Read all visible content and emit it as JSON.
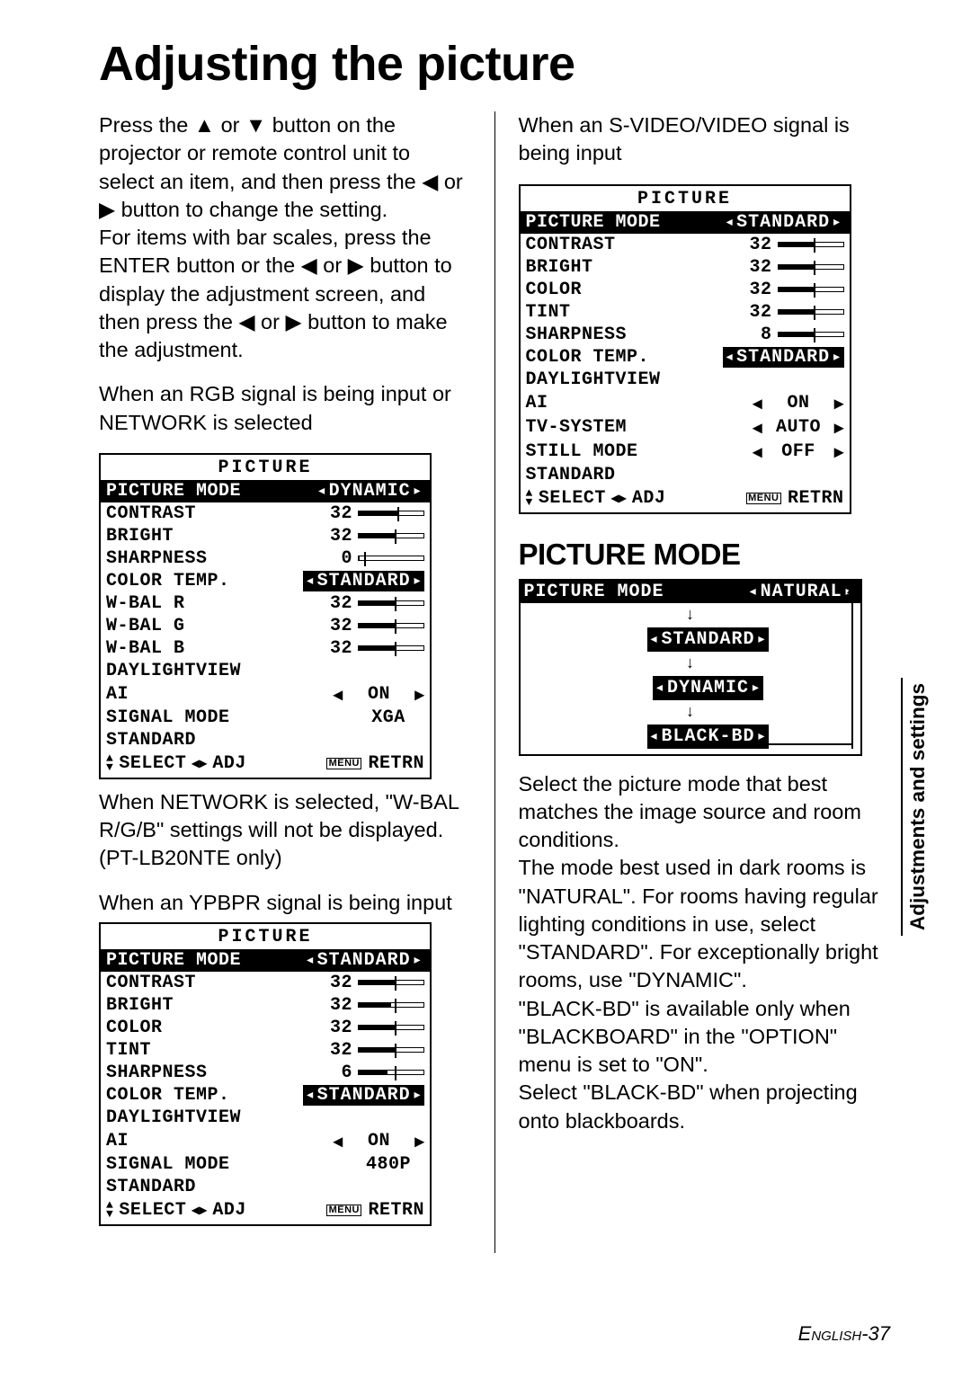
{
  "title": "Adjusting the picture",
  "left": {
    "intro": "Press the ▲ or ▼ button on the projector or remote control unit to select an item, and then press the ◀ or ▶ button to change the setting.\nFor items with bar scales, press the ENTER button or the ◀ or ▶ button to display the adjustment screen, and then press the ◀ or ▶ button to make the adjustment.",
    "cap1": "When an RGB signal is being input or NETWORK is selected",
    "osd1": {
      "title": "PICTURE",
      "mode_label": "PICTURE MODE",
      "mode_value": "DYNAMIC",
      "rows": [
        {
          "label": "CONTRAST",
          "val": "32",
          "bar_fill": 0.6,
          "tick": 0.6
        },
        {
          "label": "BRIGHT",
          "val": "32",
          "bar_fill": 0.55,
          "tick": 0.55
        },
        {
          "label": "SHARPNESS",
          "val": "0",
          "bar_fill": 0.02,
          "tick": 0.08
        },
        {
          "label": "COLOR TEMP.",
          "pill": "STANDARD"
        },
        {
          "label": "W-BAL R",
          "val": "32",
          "bar_fill": 0.55,
          "tick": 0.55
        },
        {
          "label": "W-BAL G",
          "val": "32",
          "bar_fill": 0.55,
          "tick": 0.55
        },
        {
          "label": "W-BAL B",
          "val": "32",
          "bar_fill": 0.55,
          "tick": 0.55
        },
        {
          "label": "DAYLIGHTVIEW"
        },
        {
          "label": "AI",
          "arrow_val": "ON"
        },
        {
          "label": "SIGNAL MODE",
          "text_val": "XGA"
        },
        {
          "label": "STANDARD"
        }
      ],
      "footer_select": "SELECT",
      "footer_adj": "ADJ",
      "footer_retrn": "RETRN"
    },
    "note1": "When NETWORK is selected, \"W-BAL R/G/B\" settings will not be displayed. (PT-LB20NTE only)",
    "cap2": "When an YPBPR signal is being input",
    "osd2": {
      "title": "PICTURE",
      "mode_label": "PICTURE MODE",
      "mode_value": "STANDARD",
      "rows": [
        {
          "label": "CONTRAST",
          "val": "32",
          "bar_fill": 0.55,
          "tick": 0.55
        },
        {
          "label": "BRIGHT",
          "val": "32",
          "bar_fill": 0.5,
          "tick": 0.55
        },
        {
          "label": "COLOR",
          "val": "32",
          "bar_fill": 0.55,
          "tick": 0.55
        },
        {
          "label": "TINT",
          "val": "32",
          "bar_fill": 0.55,
          "tick": 0.55
        },
        {
          "label": "SHARPNESS",
          "val": "6",
          "bar_fill": 0.45,
          "tick": 0.55
        },
        {
          "label": "COLOR TEMP.",
          "pill": "STANDARD"
        },
        {
          "label": "DAYLIGHTVIEW"
        },
        {
          "label": "AI",
          "arrow_val": "ON"
        },
        {
          "label": "SIGNAL MODE",
          "text_val": "480P"
        },
        {
          "label": "STANDARD"
        }
      ],
      "footer_select": "SELECT",
      "footer_adj": "ADJ",
      "footer_retrn": "RETRN"
    }
  },
  "right": {
    "cap3": "When an S-VIDEO/VIDEO signal is being input",
    "osd3": {
      "title": "PICTURE",
      "mode_label": "PICTURE MODE",
      "mode_value": "STANDARD",
      "rows": [
        {
          "label": "CONTRAST",
          "val": "32",
          "bar_fill": 0.55,
          "tick": 0.55
        },
        {
          "label": "BRIGHT",
          "val": "32",
          "bar_fill": 0.55,
          "tick": 0.55
        },
        {
          "label": "COLOR",
          "val": "32",
          "bar_fill": 0.55,
          "tick": 0.55
        },
        {
          "label": "TINT",
          "val": "32",
          "bar_fill": 0.55,
          "tick": 0.55
        },
        {
          "label": "SHARPNESS",
          "val": "8",
          "bar_fill": 0.55,
          "tick": 0.55
        },
        {
          "label": "COLOR TEMP.",
          "pill": "STANDARD"
        },
        {
          "label": "DAYLIGHTVIEW"
        },
        {
          "label": "AI",
          "arrow_val": "ON"
        },
        {
          "label": "TV-SYSTEM",
          "arrow_val": "AUTO"
        },
        {
          "label": "STILL MODE",
          "arrow_val": "OFF"
        },
        {
          "label": "STANDARD"
        }
      ],
      "footer_select": "SELECT",
      "footer_adj": "ADJ",
      "footer_retrn": "RETRN"
    },
    "pm_heading": "PICTURE MODE",
    "pm_top_label": "PICTURE MODE",
    "pm_top_value": "NATURAL",
    "pm_nodes": [
      "STANDARD",
      "DYNAMIC",
      "BLACK-BD"
    ],
    "pm_text": "Select the picture mode that best matches the image source and room conditions.\nThe mode best used in dark rooms is \"NATURAL\". For rooms having regular lighting conditions in use, select \"STANDARD\". For exceptionally bright rooms, use \"DYNAMIC\".\n\"BLACK-BD\" is available only when \"BLACKBOARD\" in the \"OPTION\" menu is set to \"ON\".\nSelect \"BLACK-BD\" when projecting onto blackboards."
  },
  "side_tab": "Adjustments and settings",
  "page_label_en": "English",
  "page_number": "-37"
}
